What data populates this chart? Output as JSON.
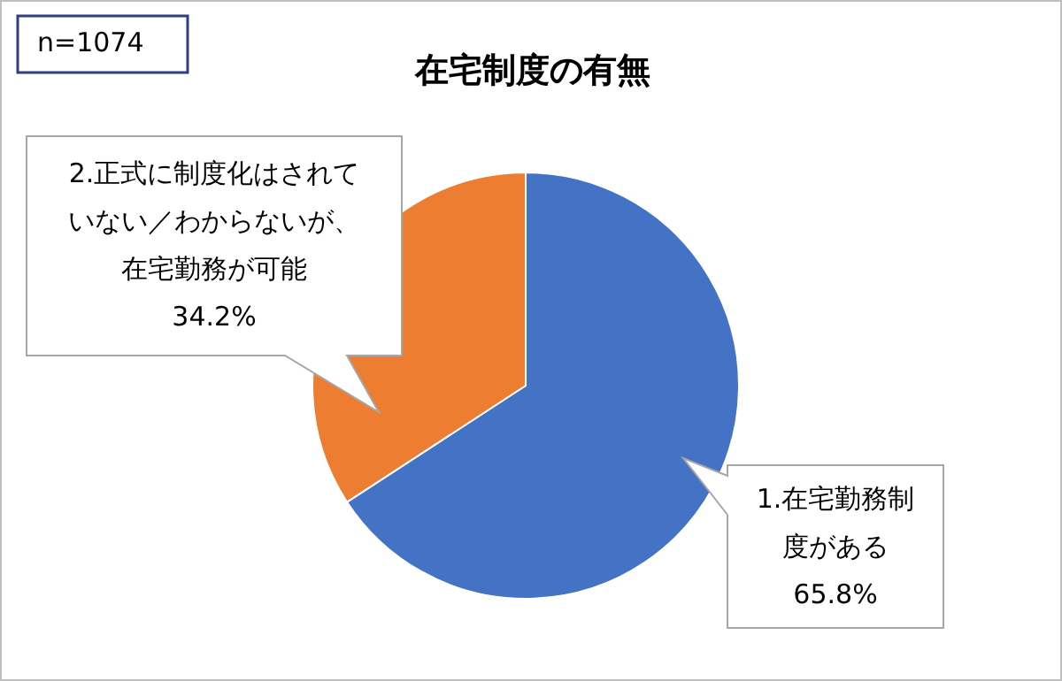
{
  "chart_data": {
    "type": "pie",
    "title": "在宅制度の有無",
    "categories": [
      "1.在宅勤務制度がある",
      "2.正式に制度化はされていない／わからないが、在宅勤務が可能"
    ],
    "values": [
      65.8,
      34.2
    ],
    "value_labels": [
      "65.8%",
      "34.2%"
    ],
    "colors": [
      "#4472c4",
      "#ed7d31"
    ],
    "annotations": [
      "n=1074"
    ],
    "legend": false
  }
}
